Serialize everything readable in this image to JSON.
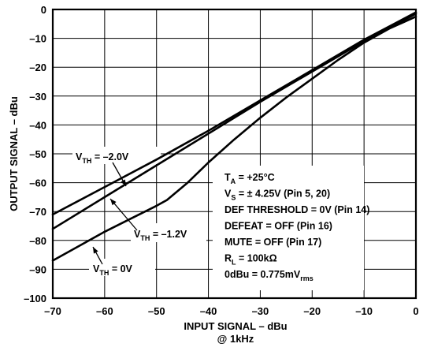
{
  "chart_data": {
    "type": "line",
    "xlabel": "INPUT SIGNAL  – dBu",
    "xlabel_sub": "@ 1kHz",
    "ylabel": "OUTPUT SIGNAL – dBu",
    "xlim": [
      -70,
      0
    ],
    "ylim": [
      -100,
      0
    ],
    "xticks": [
      -70,
      -60,
      -50,
      -40,
      -30,
      -20,
      -10,
      0
    ],
    "yticks": [
      0,
      -10,
      -20,
      -30,
      -40,
      -50,
      -60,
      -70,
      -80,
      -90,
      -100
    ],
    "xtick_labels": [
      "–70",
      "–60",
      "–50",
      "–40",
      "–30",
      "–20",
      "–10",
      "0"
    ],
    "ytick_labels": [
      "0",
      "–10",
      "–20",
      "–30",
      "–40",
      "–50",
      "–60",
      "–70",
      "–80",
      "–90",
      "–100"
    ],
    "grid": true,
    "series": [
      {
        "name": "V_TH = –2.0V",
        "label_main": "V",
        "label_sub": "TH",
        "label_rest": " = –2.0V",
        "points": [
          [
            -70,
            -71
          ],
          [
            -60,
            -61.5
          ],
          [
            -50,
            -52
          ],
          [
            -40,
            -42
          ],
          [
            -30,
            -31.5
          ],
          [
            -20,
            -21
          ],
          [
            -10,
            -10.5
          ],
          [
            0,
            -1
          ]
        ]
      },
      {
        "name": "V_TH = –1.2V",
        "label_main": "V",
        "label_sub": "TH",
        "label_rest": " = –1.2V",
        "points": [
          [
            -70,
            -76
          ],
          [
            -60,
            -65
          ],
          [
            -50,
            -54
          ],
          [
            -40,
            -43
          ],
          [
            -30,
            -32
          ],
          [
            -20,
            -21.5
          ],
          [
            -10,
            -11
          ],
          [
            0,
            -1.5
          ]
        ]
      },
      {
        "name": "V_TH = 0V",
        "label_main": "V",
        "label_sub": "TH",
        "label_rest": " = 0V",
        "points": [
          [
            -70,
            -87
          ],
          [
            -65,
            -82
          ],
          [
            -60,
            -77
          ],
          [
            -55,
            -72.5
          ],
          [
            -50,
            -68
          ],
          [
            -48,
            -66
          ],
          [
            -44,
            -60
          ],
          [
            -40,
            -53
          ],
          [
            -35,
            -45
          ],
          [
            -30,
            -37.5
          ],
          [
            -25,
            -30.5
          ],
          [
            -20,
            -24
          ],
          [
            -15,
            -17.5
          ],
          [
            -10,
            -11.5
          ],
          [
            -5,
            -6.5
          ],
          [
            0,
            -2.5
          ]
        ]
      }
    ],
    "conditions": [
      {
        "main": "T",
        "sub": "A",
        "rest": " = +25°C"
      },
      {
        "main": "V",
        "sub": "S",
        "rest": " = ± 4.25V (Pin 5, 20)"
      },
      {
        "main": "DEF THRESHOLD = 0V (Pin 14)",
        "sub": "",
        "rest": ""
      },
      {
        "main": "DEFEAT = OFF (Pin 16)",
        "sub": "",
        "rest": ""
      },
      {
        "main": "MUTE = OFF (Pin 17)",
        "sub": "",
        "rest": ""
      },
      {
        "main": "R",
        "sub": "L",
        "rest": " = 100kΩ"
      },
      {
        "main": "0dBu = 0.775mV",
        "sub": "rms",
        "rest": ""
      }
    ]
  }
}
